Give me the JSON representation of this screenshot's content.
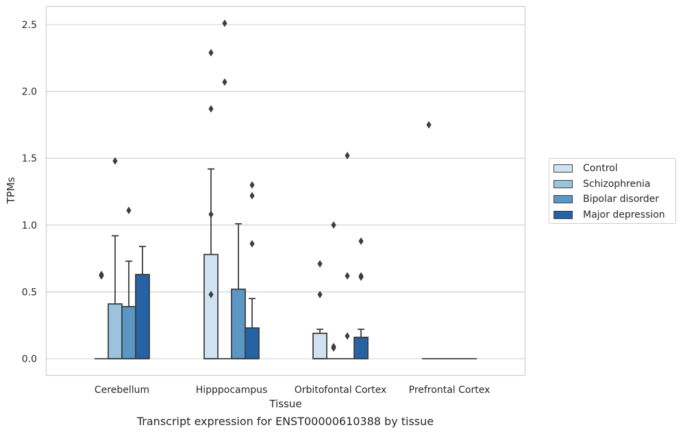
{
  "chart_data": {
    "type": "box",
    "xlabel": "Tissue",
    "ylabel": "TPMs",
    "ylim": [
      -0.12,
      2.64
    ],
    "yticks": [
      "0.0",
      "0.5",
      "1.0",
      "1.5",
      "2.0",
      "2.5"
    ],
    "grid": true,
    "legend_position": "right",
    "categories": [
      "Cerebellum",
      "Hipppocampus",
      "Orbitofontal Cortex",
      "Prefrontal Cortex"
    ],
    "series": [
      {
        "name": "Control",
        "color": "#d0e2f2",
        "boxes": [
          {
            "q1": 0,
            "median": 0,
            "q3": 0,
            "whisker_low": 0,
            "whisker_high": 0,
            "outliers": [
              0.63,
              0.62
            ]
          },
          {
            "q1": 0,
            "median": 0,
            "q3": 0.78,
            "whisker_low": 0,
            "whisker_high": 1.42,
            "outliers": [
              2.29,
              1.87,
              1.08,
              0.48
            ]
          },
          {
            "q1": 0,
            "median": 0,
            "q3": 0.19,
            "whisker_low": 0,
            "whisker_high": 0.22,
            "outliers": [
              0.71,
              0.48
            ]
          },
          {
            "q1": 0,
            "median": 0,
            "q3": 0,
            "whisker_low": 0,
            "whisker_high": 0,
            "outliers": [
              1.75
            ]
          }
        ]
      },
      {
        "name": "Schizophrenia",
        "color": "#9ac3de",
        "boxes": [
          {
            "q1": 0,
            "median": 0,
            "q3": 0.41,
            "whisker_low": 0,
            "whisker_high": 0.92,
            "outliers": [
              1.48
            ]
          },
          {
            "q1": 0,
            "median": 0,
            "q3": 0,
            "whisker_low": 0,
            "whisker_high": 0,
            "outliers": [
              2.51,
              2.07
            ]
          },
          {
            "q1": 0,
            "median": 0,
            "q3": 0,
            "whisker_low": 0,
            "whisker_high": 0,
            "outliers": [
              1.0,
              0.09,
              0.08
            ]
          },
          {
            "q1": 0,
            "median": 0,
            "q3": 0,
            "whisker_low": 0,
            "whisker_high": 0,
            "outliers": []
          }
        ]
      },
      {
        "name": "Bipolar disorder",
        "color": "#5a97c4",
        "boxes": [
          {
            "q1": 0,
            "median": 0,
            "q3": 0.39,
            "whisker_low": 0,
            "whisker_high": 0.73,
            "outliers": [
              1.11
            ]
          },
          {
            "q1": 0,
            "median": 0,
            "q3": 0.52,
            "whisker_low": 0,
            "whisker_high": 1.01,
            "outliers": []
          },
          {
            "q1": 0,
            "median": 0,
            "q3": 0,
            "whisker_low": 0,
            "whisker_high": 0,
            "outliers": [
              1.52,
              0.62,
              0.17
            ]
          },
          {
            "q1": 0,
            "median": 0,
            "q3": 0,
            "whisker_low": 0,
            "whisker_high": 0,
            "outliers": []
          }
        ]
      },
      {
        "name": "Major depression",
        "color": "#2563a5",
        "boxes": [
          {
            "q1": 0,
            "median": 0,
            "q3": 0.63,
            "whisker_low": 0,
            "whisker_high": 0.84,
            "outliers": []
          },
          {
            "q1": 0,
            "median": 0,
            "q3": 0.23,
            "whisker_low": 0,
            "whisker_high": 0.45,
            "outliers": [
              1.3,
              1.22,
              0.86
            ]
          },
          {
            "q1": 0,
            "median": 0,
            "q3": 0.16,
            "whisker_low": 0,
            "whisker_high": 0.22,
            "outliers": [
              0.88,
              0.62,
              0.61
            ]
          },
          {
            "q1": 0,
            "median": 0,
            "q3": 0,
            "whisker_low": 0,
            "whisker_high": 0,
            "outliers": []
          }
        ]
      }
    ]
  },
  "caption": "Transcript expression for ENST00000610388 by tissue"
}
